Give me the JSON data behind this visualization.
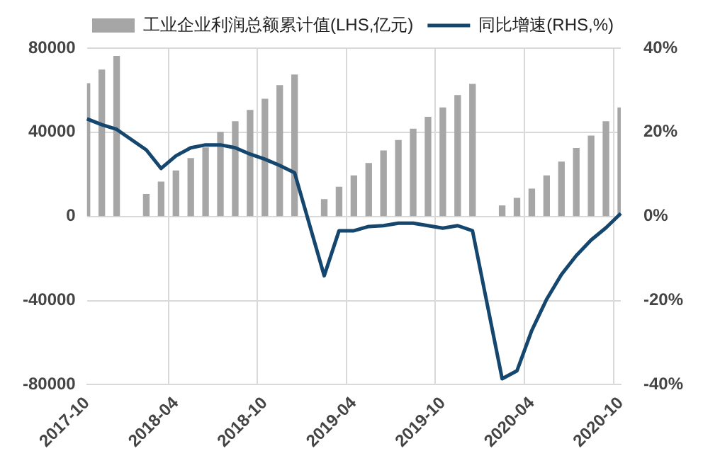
{
  "chart_data": {
    "type": "bar",
    "categories": [
      "2017-10",
      null,
      null,
      null,
      null,
      null,
      "2018-04",
      null,
      null,
      null,
      null,
      null,
      "2018-10",
      null,
      null,
      null,
      null,
      null,
      "2019-04",
      null,
      null,
      null,
      null,
      null,
      "2019-10",
      null,
      null,
      null,
      null,
      null,
      "2020-04",
      null,
      null,
      null,
      null,
      null,
      "2020-10"
    ],
    "series": [
      {
        "name": "工业企业利润总额累计值(LHS,亿元)",
        "color": "#a6a6a6",
        "values": [
          63100,
          69600,
          76100,
          null,
          10400,
          16300,
          21600,
          27500,
          32600,
          40000,
          45000,
          50400,
          55700,
          62200,
          67200,
          null,
          8000,
          13900,
          19300,
          25200,
          31100,
          36100,
          41500,
          47100,
          51600,
          57500,
          62800,
          null,
          5000,
          8600,
          13000,
          19300,
          25800,
          32300,
          38200,
          45000,
          51600
        ]
      },
      {
        "name": "同比增速(RHS,%)",
        "type": "line",
        "axis": "y2",
        "color": "#15466e",
        "values": [
          23.2,
          21.8,
          20.7,
          null,
          15.8,
          11.4,
          14.4,
          16.3,
          17.0,
          17.0,
          16.3,
          14.8,
          13.6,
          12.1,
          10.4,
          null,
          -14.1,
          -3.4,
          -3.4,
          -2.4,
          -2.2,
          -1.6,
          -1.6,
          -2.2,
          -2.8,
          -2.2,
          -3.4,
          null,
          -38.6,
          -36.7,
          -27.1,
          -19.7,
          -13.8,
          -9.3,
          -5.6,
          -2.7,
          0.7
        ]
      }
    ],
    "ylim": [
      -80000,
      80000
    ],
    "yticks": [
      -80000,
      -40000,
      0,
      40000,
      80000
    ],
    "y2lim": [
      -40,
      40
    ],
    "y2ticks": [
      {
        "value": -40,
        "label": "-40%"
      },
      {
        "value": -20,
        "label": "-20%"
      },
      {
        "value": 0,
        "label": "0%"
      },
      {
        "value": 20,
        "label": "20%"
      },
      {
        "value": 40,
        "label": "40%"
      }
    ],
    "grid": true,
    "legend": "top",
    "marker": "none",
    "line_style": "solid"
  }
}
